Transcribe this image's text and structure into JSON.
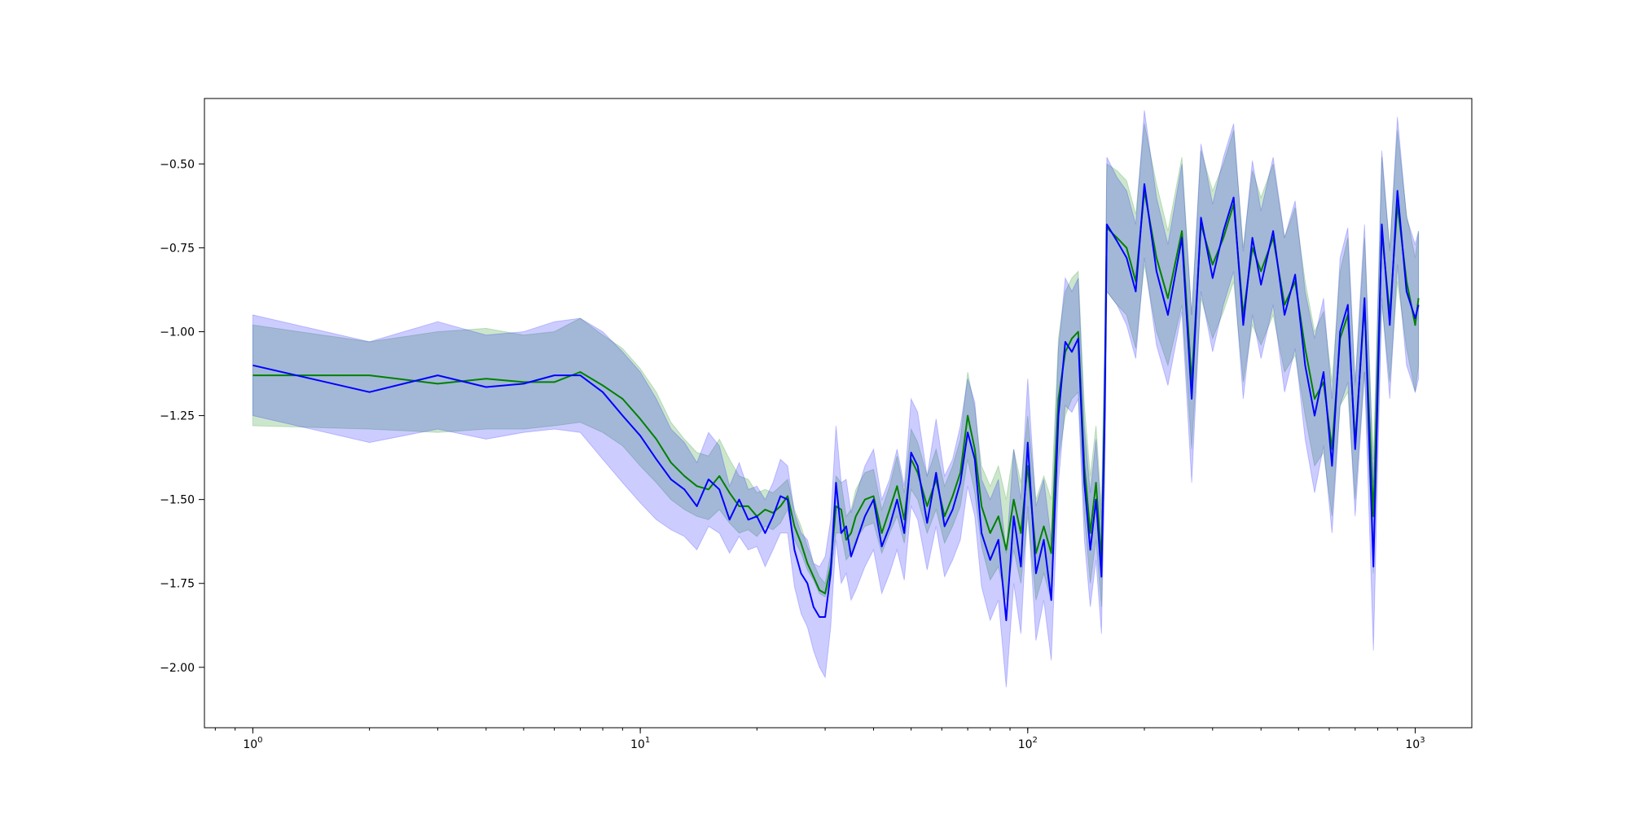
{
  "chart_data": {
    "type": "line",
    "title": "",
    "xlabel": "",
    "ylabel": "",
    "xscale": "log",
    "xlim": [
      0.75,
      1400
    ],
    "ylim": [
      -2.18,
      -0.305
    ],
    "grid": false,
    "legend": "none",
    "x_ticks": [
      {
        "value": 1,
        "base": "10",
        "exp": "0"
      },
      {
        "value": 10,
        "base": "10",
        "exp": "1"
      },
      {
        "value": 100,
        "base": "10",
        "exp": "2"
      },
      {
        "value": 1000,
        "base": "10",
        "exp": "3"
      }
    ],
    "y_ticks": [
      {
        "value": -0.5,
        "label": "−0.50"
      },
      {
        "value": -0.75,
        "label": "−0.75"
      },
      {
        "value": -1.0,
        "label": "−1.00"
      },
      {
        "value": -1.25,
        "label": "−1.25"
      },
      {
        "value": -1.5,
        "label": "−1.50"
      },
      {
        "value": -1.75,
        "label": "−1.75"
      },
      {
        "value": -2.0,
        "label": "−2.00"
      }
    ],
    "series": [
      {
        "color": "#008000",
        "band_color": "#008000",
        "band_opacity": 0.2,
        "x": [
          1,
          2,
          3,
          4,
          5,
          6,
          7,
          8,
          9,
          10,
          11,
          12,
          13,
          14,
          15,
          16,
          17,
          18,
          19,
          20,
          21,
          22,
          23,
          24,
          25,
          26,
          27,
          28,
          29,
          30,
          31,
          32,
          33,
          34,
          35,
          36,
          38,
          40,
          42,
          44,
          46,
          48,
          50,
          52,
          55,
          58,
          61,
          64,
          67,
          70,
          73,
          76,
          80,
          84,
          88,
          92,
          96,
          100,
          105,
          110,
          115,
          120,
          125,
          130,
          135,
          140,
          145,
          150,
          155,
          158,
          160,
          170,
          180,
          190,
          200,
          215,
          230,
          250,
          265,
          280,
          300,
          320,
          340,
          360,
          380,
          400,
          430,
          460,
          490,
          520,
          550,
          580,
          610,
          640,
          670,
          700,
          740,
          780,
          820,
          860,
          900,
          950,
          1000,
          1020
        ],
        "y": [
          -1.13,
          -1.13,
          -1.155,
          -1.14,
          -1.15,
          -1.15,
          -1.12,
          -1.16,
          -1.2,
          -1.26,
          -1.32,
          -1.39,
          -1.43,
          -1.46,
          -1.47,
          -1.43,
          -1.48,
          -1.52,
          -1.52,
          -1.55,
          -1.53,
          -1.54,
          -1.52,
          -1.49,
          -1.58,
          -1.63,
          -1.69,
          -1.73,
          -1.77,
          -1.78,
          -1.7,
          -1.52,
          -1.53,
          -1.62,
          -1.6,
          -1.55,
          -1.5,
          -1.49,
          -1.6,
          -1.53,
          -1.46,
          -1.56,
          -1.38,
          -1.42,
          -1.52,
          -1.44,
          -1.55,
          -1.49,
          -1.42,
          -1.25,
          -1.35,
          -1.52,
          -1.6,
          -1.55,
          -1.65,
          -1.5,
          -1.6,
          -1.4,
          -1.66,
          -1.58,
          -1.66,
          -1.2,
          -1.06,
          -1.02,
          -1.0,
          -1.4,
          -1.6,
          -1.45,
          -1.68,
          -1.2,
          -0.69,
          -0.72,
          -0.75,
          -0.85,
          -0.58,
          -0.78,
          -0.9,
          -0.7,
          -1.15,
          -0.68,
          -0.8,
          -0.72,
          -0.62,
          -0.95,
          -0.75,
          -0.82,
          -0.72,
          -0.92,
          -0.85,
          -1.05,
          -1.2,
          -1.15,
          -1.35,
          -1.02,
          -0.95,
          -1.33,
          -0.92,
          -1.55,
          -0.7,
          -0.95,
          -0.62,
          -0.85,
          -0.98,
          -0.9
        ],
        "y_lower": [
          -1.28,
          -1.29,
          -1.3,
          -1.29,
          -1.29,
          -1.28,
          -1.27,
          -1.3,
          -1.34,
          -1.4,
          -1.45,
          -1.5,
          -1.53,
          -1.55,
          -1.56,
          -1.53,
          -1.57,
          -1.6,
          -1.59,
          -1.61,
          -1.58,
          -1.59,
          -1.57,
          -1.53,
          -1.62,
          -1.66,
          -1.71,
          -1.74,
          -1.78,
          -1.79,
          -1.73,
          -1.6,
          -1.6,
          -1.68,
          -1.66,
          -1.62,
          -1.58,
          -1.57,
          -1.66,
          -1.6,
          -1.55,
          -1.63,
          -1.47,
          -1.5,
          -1.6,
          -1.53,
          -1.63,
          -1.58,
          -1.52,
          -1.38,
          -1.48,
          -1.64,
          -1.74,
          -1.7,
          -1.8,
          -1.65,
          -1.75,
          -1.55,
          -1.8,
          -1.72,
          -1.8,
          -1.38,
          -1.25,
          -1.2,
          -1.18,
          -1.55,
          -1.75,
          -1.62,
          -1.82,
          -1.4,
          -0.88,
          -0.92,
          -0.95,
          -1.05,
          -0.8,
          -1.0,
          -1.1,
          -0.92,
          -1.35,
          -0.9,
          -1.02,
          -0.94,
          -0.85,
          -1.15,
          -0.98,
          -1.04,
          -0.95,
          -1.12,
          -1.07,
          -1.25,
          -1.4,
          -1.36,
          -1.55,
          -1.22,
          -1.18,
          -1.5,
          -1.12,
          -1.72,
          -0.92,
          -1.15,
          -0.85,
          -1.05,
          -1.18,
          -1.1
        ],
        "y_upper": [
          -0.98,
          -1.03,
          -1.0,
          -0.99,
          -1.01,
          -1.0,
          -0.96,
          -1.01,
          -1.05,
          -1.11,
          -1.18,
          -1.27,
          -1.32,
          -1.36,
          -1.37,
          -1.32,
          -1.38,
          -1.43,
          -1.44,
          -1.48,
          -1.47,
          -1.48,
          -1.46,
          -1.44,
          -1.53,
          -1.58,
          -1.64,
          -1.69,
          -1.73,
          -1.75,
          -1.66,
          -1.43,
          -1.45,
          -1.55,
          -1.53,
          -1.47,
          -1.42,
          -1.41,
          -1.53,
          -1.46,
          -1.37,
          -1.48,
          -1.29,
          -1.33,
          -1.43,
          -1.35,
          -1.46,
          -1.4,
          -1.32,
          -1.12,
          -1.23,
          -1.4,
          -1.46,
          -1.4,
          -1.5,
          -1.35,
          -1.45,
          -1.25,
          -1.5,
          -1.43,
          -1.5,
          -1.02,
          -0.88,
          -0.84,
          -0.82,
          -1.22,
          -1.43,
          -1.28,
          -1.52,
          -1.0,
          -0.5,
          -0.52,
          -0.55,
          -0.65,
          -0.38,
          -0.56,
          -0.7,
          -0.48,
          -0.95,
          -0.46,
          -0.58,
          -0.5,
          -0.4,
          -0.75,
          -0.52,
          -0.6,
          -0.5,
          -0.72,
          -0.63,
          -0.85,
          -1.0,
          -0.94,
          -1.15,
          -0.82,
          -0.72,
          -1.16,
          -0.72,
          -1.38,
          -0.48,
          -0.75,
          -0.4,
          -0.65,
          -0.78,
          -0.7
        ]
      },
      {
        "color": "#0000ff",
        "band_color": "#0000ff",
        "band_opacity": 0.2,
        "x": [
          1,
          2,
          3,
          4,
          5,
          6,
          7,
          8,
          9,
          10,
          11,
          12,
          13,
          14,
          15,
          16,
          17,
          18,
          19,
          20,
          21,
          22,
          23,
          24,
          25,
          26,
          27,
          28,
          29,
          30,
          31,
          32,
          33,
          34,
          35,
          36,
          38,
          40,
          42,
          44,
          46,
          48,
          50,
          52,
          55,
          58,
          61,
          64,
          67,
          70,
          73,
          76,
          80,
          84,
          88,
          92,
          96,
          100,
          105,
          110,
          115,
          120,
          125,
          130,
          135,
          140,
          145,
          150,
          155,
          158,
          160,
          170,
          180,
          190,
          200,
          215,
          230,
          250,
          265,
          280,
          300,
          320,
          340,
          360,
          380,
          400,
          430,
          460,
          490,
          520,
          550,
          580,
          610,
          640,
          670,
          700,
          740,
          780,
          820,
          860,
          900,
          950,
          1000,
          1020
        ],
        "y": [
          -1.1,
          -1.18,
          -1.13,
          -1.165,
          -1.155,
          -1.13,
          -1.13,
          -1.18,
          -1.25,
          -1.31,
          -1.38,
          -1.44,
          -1.47,
          -1.52,
          -1.44,
          -1.47,
          -1.56,
          -1.5,
          -1.56,
          -1.55,
          -1.6,
          -1.55,
          -1.49,
          -1.5,
          -1.65,
          -1.72,
          -1.75,
          -1.82,
          -1.85,
          -1.85,
          -1.72,
          -1.45,
          -1.6,
          -1.58,
          -1.67,
          -1.63,
          -1.55,
          -1.5,
          -1.64,
          -1.58,
          -1.5,
          -1.6,
          -1.36,
          -1.4,
          -1.57,
          -1.42,
          -1.58,
          -1.53,
          -1.45,
          -1.3,
          -1.38,
          -1.6,
          -1.68,
          -1.62,
          -1.86,
          -1.55,
          -1.7,
          -1.33,
          -1.72,
          -1.62,
          -1.8,
          -1.25,
          -1.03,
          -1.06,
          -1.02,
          -1.45,
          -1.65,
          -1.5,
          -1.73,
          -1.25,
          -0.68,
          -0.73,
          -0.78,
          -0.88,
          -0.56,
          -0.82,
          -0.95,
          -0.72,
          -1.2,
          -0.66,
          -0.84,
          -0.7,
          -0.6,
          -0.98,
          -0.72,
          -0.86,
          -0.7,
          -0.95,
          -0.83,
          -1.1,
          -1.25,
          -1.12,
          -1.4,
          -1.0,
          -0.92,
          -1.35,
          -0.9,
          -1.7,
          -0.68,
          -0.98,
          -0.58,
          -0.88,
          -0.96,
          -0.92
        ],
        "y_lower": [
          -1.25,
          -1.33,
          -1.29,
          -1.32,
          -1.3,
          -1.29,
          -1.3,
          -1.38,
          -1.45,
          -1.51,
          -1.56,
          -1.59,
          -1.61,
          -1.65,
          -1.58,
          -1.6,
          -1.66,
          -1.61,
          -1.65,
          -1.64,
          -1.7,
          -1.65,
          -1.6,
          -1.6,
          -1.76,
          -1.84,
          -1.88,
          -1.95,
          -2.0,
          -2.03,
          -1.88,
          -1.62,
          -1.75,
          -1.72,
          -1.8,
          -1.77,
          -1.7,
          -1.65,
          -1.78,
          -1.72,
          -1.65,
          -1.74,
          -1.52,
          -1.56,
          -1.71,
          -1.58,
          -1.73,
          -1.68,
          -1.62,
          -1.46,
          -1.55,
          -1.76,
          -1.86,
          -1.8,
          -2.06,
          -1.75,
          -1.9,
          -1.52,
          -1.92,
          -1.8,
          -1.98,
          -1.45,
          -1.22,
          -1.24,
          -1.2,
          -1.62,
          -1.82,
          -1.68,
          -1.9,
          -1.45,
          -0.88,
          -0.92,
          -0.98,
          -1.08,
          -0.78,
          -1.04,
          -1.16,
          -0.94,
          -1.45,
          -0.88,
          -1.06,
          -0.92,
          -0.82,
          -1.2,
          -0.95,
          -1.08,
          -0.92,
          -1.18,
          -1.05,
          -1.32,
          -1.48,
          -1.34,
          -1.6,
          -1.22,
          -1.15,
          -1.55,
          -1.12,
          -1.95,
          -0.9,
          -1.2,
          -0.8,
          -1.1,
          -1.18,
          -1.14
        ],
        "y_upper": [
          -0.95,
          -1.03,
          -0.97,
          -1.01,
          -1.0,
          -0.97,
          -0.96,
          -1.0,
          -1.06,
          -1.12,
          -1.2,
          -1.29,
          -1.33,
          -1.39,
          -1.3,
          -1.34,
          -1.46,
          -1.39,
          -1.47,
          -1.46,
          -1.5,
          -1.45,
          -1.38,
          -1.4,
          -1.54,
          -1.6,
          -1.62,
          -1.69,
          -1.7,
          -1.67,
          -1.56,
          -1.28,
          -1.45,
          -1.44,
          -1.54,
          -1.49,
          -1.4,
          -1.35,
          -1.5,
          -1.44,
          -1.35,
          -1.46,
          -1.2,
          -1.24,
          -1.43,
          -1.26,
          -1.43,
          -1.38,
          -1.28,
          -1.14,
          -1.21,
          -1.44,
          -1.5,
          -1.44,
          -1.66,
          -1.35,
          -1.5,
          -1.14,
          -1.52,
          -1.44,
          -1.62,
          -1.05,
          -0.84,
          -0.88,
          -0.84,
          -1.28,
          -1.48,
          -1.32,
          -1.56,
          -1.05,
          -0.48,
          -0.54,
          -0.58,
          -0.68,
          -0.34,
          -0.6,
          -0.74,
          -0.5,
          -0.95,
          -0.44,
          -0.62,
          -0.48,
          -0.38,
          -0.76,
          -0.49,
          -0.64,
          -0.48,
          -0.72,
          -0.61,
          -0.88,
          -1.02,
          -0.9,
          -1.2,
          -0.78,
          -0.69,
          -1.15,
          -0.68,
          -1.45,
          -0.46,
          -0.76,
          -0.36,
          -0.66,
          -0.74,
          -0.7
        ]
      }
    ]
  }
}
